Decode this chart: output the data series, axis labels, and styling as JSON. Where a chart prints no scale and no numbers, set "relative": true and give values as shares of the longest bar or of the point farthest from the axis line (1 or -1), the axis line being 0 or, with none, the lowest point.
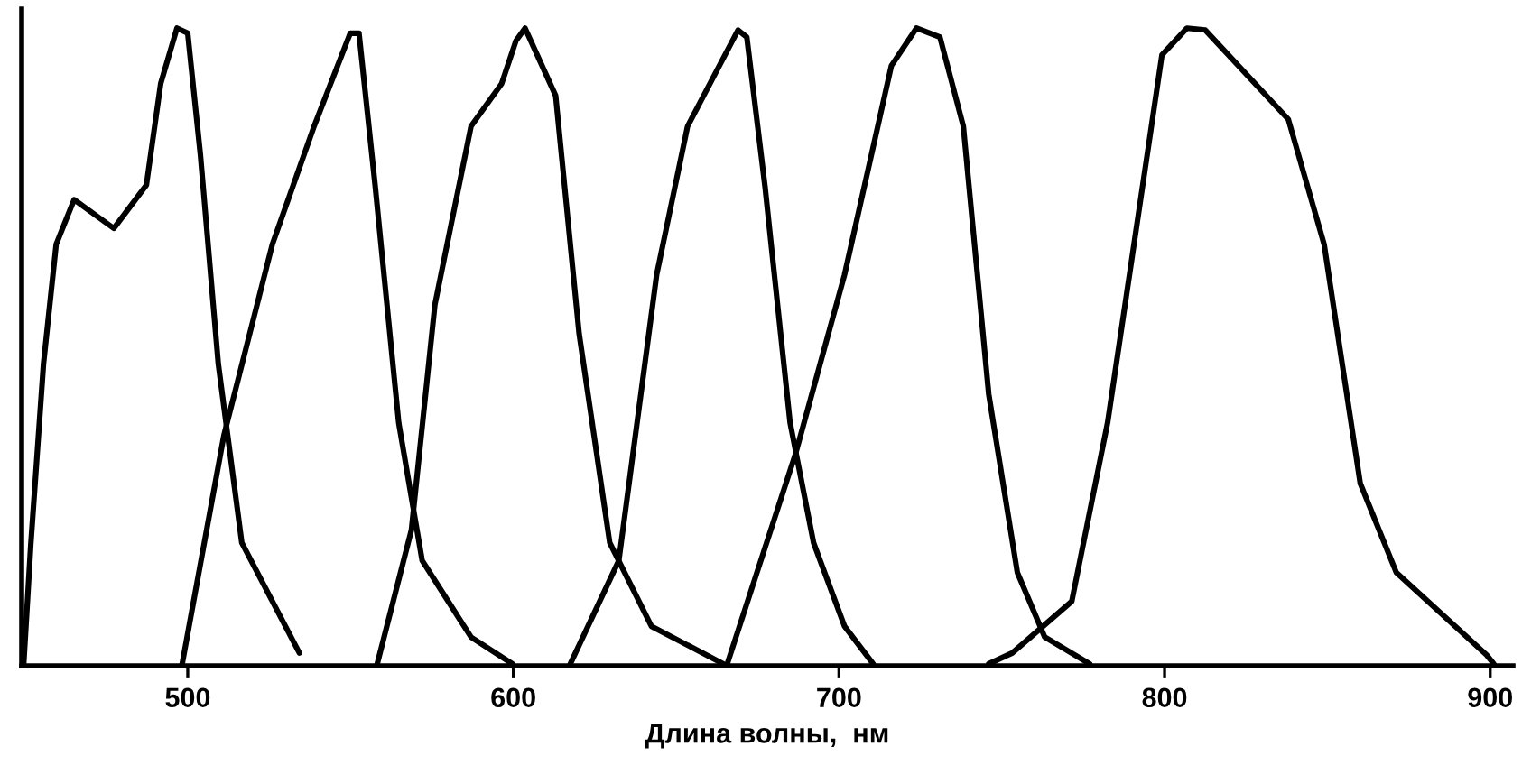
{
  "chart_data": {
    "type": "line",
    "xlabel": "Длина волны,  нм",
    "relative": true,
    "xlim": [
      449,
      907
    ],
    "xticks": [
      500,
      600,
      700,
      800,
      900
    ],
    "grid": false,
    "marker": "none",
    "line_style": "solid",
    "series": [
      {
        "color": "#000000",
        "x": [
          449.6,
          451.8,
          455.7,
          459.6,
          465.1,
          477.3,
          487.3,
          491.7,
          496.7,
          500.0,
          503.9,
          509.4,
          516.6,
          534.3
        ],
        "values": [
          0.0,
          0.19,
          0.473,
          0.661,
          0.731,
          0.686,
          0.754,
          0.913,
          1.0,
          0.992,
          0.801,
          0.473,
          0.193,
          0.02
        ]
      },
      {
        "color": "#000000",
        "x": [
          498.3,
          511.1,
          526.0,
          538.8,
          549.9,
          552.6,
          557.6,
          564.8,
          572.0,
          587.0,
          599.7
        ],
        "values": [
          0.003,
          0.361,
          0.661,
          0.846,
          0.992,
          0.992,
          0.751,
          0.381,
          0.165,
          0.045,
          0.003
        ]
      },
      {
        "color": "#000000",
        "x": [
          558.2,
          568.7,
          575.9,
          587.0,
          596.4,
          600.8,
          603.6,
          613.0,
          620.2,
          629.6,
          642.4,
          664.5
        ],
        "values": [
          0.003,
          0.213,
          0.566,
          0.846,
          0.913,
          0.98,
          1.0,
          0.894,
          0.521,
          0.193,
          0.062,
          0.003
        ]
      },
      {
        "color": "#000000",
        "x": [
          617.5,
          632.4,
          644.0,
          653.5,
          669.0,
          671.7,
          677.3,
          685.0,
          692.2,
          701.7,
          710.5
        ],
        "values": [
          0.003,
          0.165,
          0.613,
          0.846,
          0.997,
          0.986,
          0.751,
          0.381,
          0.193,
          0.062,
          0.003
        ]
      },
      {
        "color": "#000000",
        "x": [
          665.7,
          686.7,
          701.7,
          716.1,
          723.8,
          731.0,
          738.2,
          746.0,
          754.8,
          763.2,
          777.0
        ],
        "values": [
          0.003,
          0.333,
          0.613,
          0.941,
          1.0,
          0.986,
          0.846,
          0.426,
          0.146,
          0.045,
          0.003
        ]
      },
      {
        "color": "#000000",
        "x": [
          746.0,
          753.2,
          771.5,
          782.5,
          799.2,
          806.9,
          812.5,
          838.0,
          849.0,
          860.1,
          871.2,
          898.9,
          901.1
        ],
        "values": [
          0.003,
          0.02,
          0.101,
          0.381,
          0.958,
          1.0,
          0.997,
          0.857,
          0.661,
          0.286,
          0.146,
          0.017,
          0.003
        ]
      }
    ]
  }
}
